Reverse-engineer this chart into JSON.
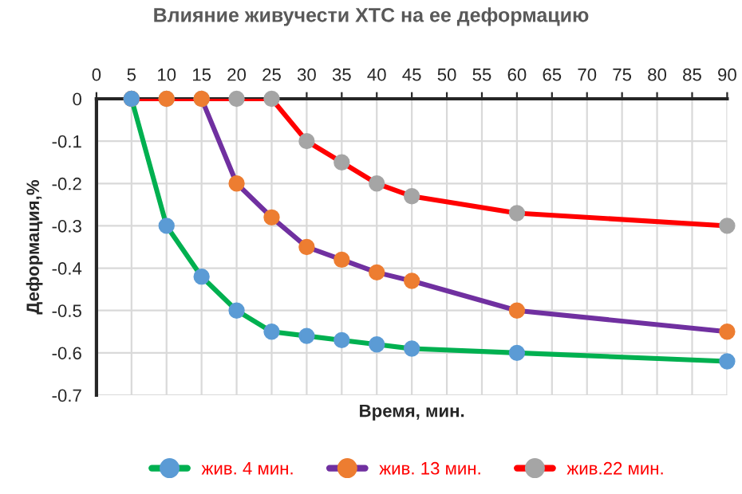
{
  "chart_data": {
    "type": "line",
    "title": "Влияние живучести ХТС на ее деформацию",
    "xlabel": "Время, мин.",
    "ylabel": "Деформация,%",
    "x": [
      5,
      10,
      15,
      20,
      25,
      30,
      35,
      40,
      45,
      60,
      90
    ],
    "series": [
      {
        "name": "жив. 4 мин.",
        "color": "#00b050",
        "colors": [
          "#5b9bd5",
          "#5b9bd5",
          "#5b9bd5",
          "#5b9bd5",
          "#5b9bd5",
          "#5b9bd5",
          "#5b9bd5",
          "#5b9bd5",
          "#5b9bd5",
          "#5b9bd5",
          "#5b9bd5"
        ],
        "values": [
          0,
          -0.3,
          -0.42,
          -0.5,
          -0.55,
          -0.56,
          -0.57,
          -0.58,
          -0.59,
          -0.6,
          -0.62
        ]
      },
      {
        "name": "жив. 13 мин.",
        "color": "#7030a0",
        "colors": [
          "#ed7d31",
          "#ed7d31",
          "#ed7d31",
          "#ed7d31",
          "#ed7d31",
          "#ed7d31",
          "#ed7d31",
          "#ed7d31",
          "#ed7d31",
          "#ed7d31",
          "#ed7d31"
        ],
        "values": [
          0,
          0,
          0,
          -0.2,
          -0.28,
          -0.35,
          -0.38,
          -0.41,
          -0.43,
          -0.5,
          -0.55
        ]
      },
      {
        "name": "жив.22 мин.",
        "color": "#ff0000",
        "colors": [
          "#a5a5a5",
          "#a5a5a5",
          "#a5a5a5",
          "#a5a5a5",
          "#a5a5a5",
          "#a5a5a5",
          "#a5a5a5",
          "#a5a5a5",
          "#a5a5a5",
          "#a5a5a5",
          "#a5a5a5"
        ],
        "values": [
          0,
          0,
          0,
          0,
          0,
          -0.1,
          -0.15,
          -0.2,
          -0.23,
          -0.27,
          -0.3
        ]
      }
    ],
    "xlim": [
      0,
      90
    ],
    "xticks": [
      0,
      5,
      10,
      15,
      20,
      25,
      30,
      35,
      40,
      45,
      50,
      55,
      60,
      65,
      70,
      75,
      80,
      85,
      90
    ],
    "ylim": [
      -0.7,
      0
    ],
    "yticks": [
      {
        "value": -0.7,
        "label": "-0.7"
      },
      {
        "value": -0.6,
        "label": "-0.6"
      },
      {
        "value": -0.5,
        "label": "-0.5"
      },
      {
        "value": -0.4,
        "label": "-0.4"
      },
      {
        "value": -0.3,
        "label": "-0.3"
      },
      {
        "value": -0.2,
        "label": "-0.2"
      },
      {
        "value": -0.1,
        "label": "-0.1"
      },
      0
    ],
    "grid": true,
    "legend": "bottom",
    "marker": "circle",
    "line_style": "solid"
  }
}
